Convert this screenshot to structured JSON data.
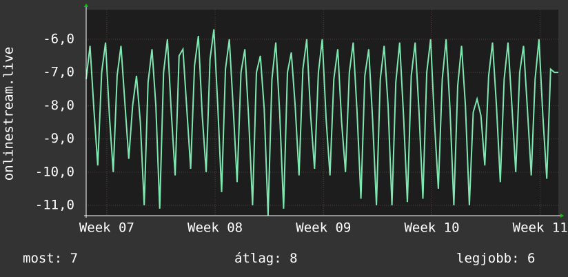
{
  "chart_data": {
    "type": "line",
    "y_label": "onlinestream.live",
    "color": "#7ee8b0",
    "grid": true,
    "xlim": [
      0,
      30.5
    ],
    "xticks": [
      {
        "value": 1.33,
        "label": "Week 07"
      },
      {
        "value": 8.33,
        "label": "Week 08"
      },
      {
        "value": 15.33,
        "label": "Week 09"
      },
      {
        "value": 22.33,
        "label": "Week 10"
      },
      {
        "value": 29.33,
        "label": "Week 11"
      }
    ],
    "ylim": [
      -11.31,
      -5.11
    ],
    "yticks": [
      {
        "value": -6,
        "label": "-6,0"
      },
      {
        "value": -7,
        "label": "-7,0"
      },
      {
        "value": -8,
        "label": "-8,0"
      },
      {
        "value": -9,
        "label": "-9,0"
      },
      {
        "value": -10,
        "label": "-10,0"
      },
      {
        "value": -11,
        "label": "-11,0"
      }
    ],
    "x": [
      0,
      0.25,
      0.5,
      0.75,
      1,
      1.25,
      1.5,
      1.75,
      2,
      2.25,
      2.5,
      2.75,
      3,
      3.25,
      3.5,
      3.75,
      4,
      4.25,
      4.5,
      4.75,
      5,
      5.25,
      5.5,
      5.75,
      6,
      6.25,
      6.5,
      6.75,
      7,
      7.25,
      7.5,
      7.75,
      8,
      8.25,
      8.5,
      8.75,
      9,
      9.25,
      9.5,
      9.75,
      10,
      10.25,
      10.5,
      10.75,
      11,
      11.25,
      11.5,
      11.75,
      12,
      12.25,
      12.5,
      12.75,
      13,
      13.25,
      13.5,
      13.75,
      14,
      14.25,
      14.5,
      14.75,
      15,
      15.25,
      15.5,
      15.75,
      16,
      16.25,
      16.5,
      16.75,
      17,
      17.25,
      17.5,
      17.75,
      18,
      18.25,
      18.5,
      18.75,
      19,
      19.25,
      19.5,
      19.75,
      20,
      20.25,
      20.5,
      20.75,
      21,
      21.25,
      21.5,
      21.75,
      22,
      22.25,
      22.5,
      22.75,
      23,
      23.25,
      23.5,
      23.75,
      24,
      24.25,
      24.5,
      24.75,
      25,
      25.25,
      25.5,
      25.75,
      26,
      26.25,
      26.5,
      26.75,
      27,
      27.25,
      27.5,
      27.75,
      28,
      28.25,
      28.5,
      28.75,
      29,
      29.25,
      29.5,
      29.75,
      30,
      30.25,
      30.5
    ],
    "values": [
      -7.2,
      -6.2,
      -8.1,
      -9.8,
      -7.0,
      -6.1,
      -8.3,
      -10.0,
      -7.1,
      -6.2,
      -7.9,
      -9.6,
      -8.0,
      -7.1,
      -8.5,
      -11.0,
      -7.3,
      -6.3,
      -8.0,
      -11.1,
      -7.0,
      -6.0,
      -8.2,
      -10.1,
      -6.5,
      -6.3,
      -8.1,
      -9.9,
      -6.8,
      -5.9,
      -8.3,
      -10.0,
      -6.6,
      -5.7,
      -8.0,
      -10.6,
      -6.9,
      -6.0,
      -8.1,
      -10.3,
      -7.0,
      -6.3,
      -8.4,
      -11.0,
      -7.0,
      -6.5,
      -8.1,
      -11.3,
      -7.2,
      -6.1,
      -8.2,
      -11.1,
      -7.0,
      -6.4,
      -8.0,
      -10.1,
      -6.9,
      -6.0,
      -8.3,
      -9.9,
      -7.0,
      -6.0,
      -8.4,
      -10.1,
      -7.2,
      -6.3,
      -8.5,
      -10.0,
      -7.0,
      -6.1,
      -8.2,
      -10.8,
      -7.1,
      -6.3,
      -8.4,
      -11.0,
      -7.2,
      -6.2,
      -8.0,
      -11.0,
      -7.3,
      -6.1,
      -8.3,
      -10.9,
      -7.1,
      -6.1,
      -8.2,
      -10.8,
      -7.0,
      -6.0,
      -8.5,
      -10.5,
      -7.2,
      -6.0,
      -8.1,
      -11.0,
      -7.4,
      -6.2,
      -8.0,
      -11.0,
      -8.2,
      -7.8,
      -8.3,
      -9.8,
      -7.1,
      -6.1,
      -8.0,
      -10.3,
      -7.2,
      -6.1,
      -8.0,
      -10.0,
      -7.0,
      -6.2,
      -8.1,
      -10.1,
      -7.2,
      -6.0,
      -8.3,
      -10.2,
      -6.9,
      -7.0,
      -7.0
    ]
  },
  "footer": [
    {
      "label": "most:",
      "value": 7
    },
    {
      "label": "átlag:",
      "value": 8
    },
    {
      "label": "legjobb:",
      "value": 6
    }
  ]
}
